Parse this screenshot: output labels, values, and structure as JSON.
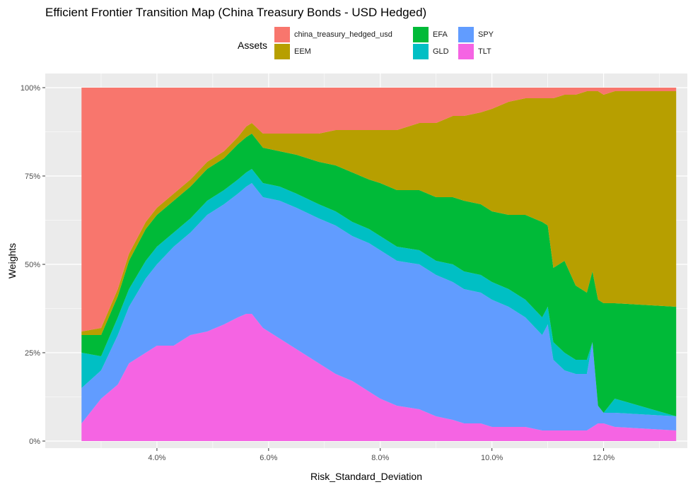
{
  "chart_data": {
    "type": "area",
    "stacked": true,
    "title": "Efficient Frontier Transition Map (China Treasury Bonds - USD Hedged)",
    "xlabel": "Risk_Standard_Deviation",
    "ylabel": "Weights",
    "xlim": [
      2.0,
      13.5
    ],
    "ylim": [
      -0.02,
      1.04
    ],
    "x_ticks": [
      4,
      6,
      8,
      10,
      12
    ],
    "x_tick_labels": [
      "4.0%",
      "6.0%",
      "8.0%",
      "10.0%",
      "12.0%"
    ],
    "y_ticks": [
      0,
      0.25,
      0.5,
      0.75,
      1.0
    ],
    "y_tick_labels": [
      "0%",
      "25%",
      "50%",
      "75%",
      "100%"
    ],
    "grid": true,
    "legend": {
      "title": "Assets",
      "placement": "top",
      "items": [
        {
          "name": "china_treasury_hedged_usd",
          "color": "#F8766D"
        },
        {
          "name": "EEM",
          "color": "#B79F00"
        },
        {
          "name": "EFA",
          "color": "#00BA38"
        },
        {
          "name": "GLD",
          "color": "#00BFC4"
        },
        {
          "name": "SPY",
          "color": "#619CFF"
        },
        {
          "name": "TLT",
          "color": "#F564E3"
        }
      ]
    },
    "x": [
      2.65,
      3.0,
      3.3,
      3.5,
      3.8,
      4.0,
      4.3,
      4.6,
      4.9,
      5.2,
      5.45,
      5.6,
      5.7,
      5.9,
      6.2,
      6.5,
      6.9,
      7.2,
      7.5,
      7.8,
      8.0,
      8.3,
      8.7,
      9.0,
      9.3,
      9.5,
      9.8,
      10.0,
      10.3,
      10.6,
      10.9,
      11.0,
      11.1,
      11.3,
      11.5,
      11.7,
      11.8,
      11.9,
      12.0,
      12.2,
      13.3
    ],
    "series": [
      {
        "name": "TLT",
        "values": [
          0.05,
          0.12,
          0.16,
          0.22,
          0.25,
          0.27,
          0.27,
          0.3,
          0.31,
          0.33,
          0.35,
          0.36,
          0.36,
          0.32,
          0.29,
          0.26,
          0.22,
          0.19,
          0.17,
          0.14,
          0.12,
          0.1,
          0.09,
          0.07,
          0.06,
          0.05,
          0.05,
          0.04,
          0.04,
          0.04,
          0.03,
          0.03,
          0.03,
          0.03,
          0.03,
          0.03,
          0.04,
          0.05,
          0.05,
          0.04,
          0.03
        ]
      },
      {
        "name": "SPY",
        "values": [
          0.1,
          0.08,
          0.14,
          0.16,
          0.21,
          0.23,
          0.28,
          0.29,
          0.33,
          0.34,
          0.35,
          0.36,
          0.37,
          0.37,
          0.39,
          0.4,
          0.41,
          0.42,
          0.41,
          0.42,
          0.42,
          0.41,
          0.41,
          0.4,
          0.39,
          0.38,
          0.37,
          0.36,
          0.34,
          0.31,
          0.27,
          0.3,
          0.2,
          0.17,
          0.16,
          0.16,
          0.24,
          0.05,
          0.03,
          0.04,
          0.04
        ]
      },
      {
        "name": "GLD",
        "values": [
          0.1,
          0.04,
          0.05,
          0.05,
          0.05,
          0.05,
          0.04,
          0.04,
          0.04,
          0.04,
          0.04,
          0.04,
          0.04,
          0.04,
          0.04,
          0.04,
          0.04,
          0.04,
          0.04,
          0.04,
          0.04,
          0.04,
          0.04,
          0.04,
          0.05,
          0.05,
          0.05,
          0.05,
          0.05,
          0.05,
          0.05,
          0.05,
          0.05,
          0.05,
          0.04,
          0.04,
          0.0,
          0.0,
          0.0,
          0.04,
          0.0
        ]
      },
      {
        "name": "EFA",
        "values": [
          0.05,
          0.06,
          0.06,
          0.08,
          0.09,
          0.09,
          0.09,
          0.09,
          0.09,
          0.09,
          0.1,
          0.1,
          0.1,
          0.1,
          0.1,
          0.11,
          0.12,
          0.13,
          0.14,
          0.14,
          0.15,
          0.16,
          0.17,
          0.18,
          0.19,
          0.2,
          0.2,
          0.2,
          0.21,
          0.24,
          0.27,
          0.23,
          0.21,
          0.26,
          0.21,
          0.19,
          0.2,
          0.3,
          0.31,
          0.27,
          0.31
        ]
      },
      {
        "name": "EEM",
        "values": [
          0.01,
          0.02,
          0.02,
          0.02,
          0.02,
          0.02,
          0.02,
          0.02,
          0.02,
          0.02,
          0.02,
          0.03,
          0.03,
          0.04,
          0.05,
          0.06,
          0.08,
          0.1,
          0.12,
          0.14,
          0.15,
          0.17,
          0.19,
          0.21,
          0.23,
          0.24,
          0.26,
          0.29,
          0.32,
          0.33,
          0.35,
          0.36,
          0.48,
          0.47,
          0.54,
          0.57,
          0.51,
          0.59,
          0.59,
          0.6,
          0.61
        ]
      },
      {
        "name": "china_treasury_hedged_usd",
        "values": [
          0.69,
          0.68,
          0.57,
          0.47,
          0.38,
          0.34,
          0.3,
          0.26,
          0.21,
          0.18,
          0.14,
          0.11,
          0.1,
          0.13,
          0.13,
          0.13,
          0.13,
          0.12,
          0.12,
          0.12,
          0.12,
          0.12,
          0.1,
          0.1,
          0.08,
          0.08,
          0.07,
          0.06,
          0.04,
          0.03,
          0.03,
          0.03,
          0.03,
          0.02,
          0.02,
          0.01,
          0.01,
          0.01,
          0.02,
          0.01,
          0.01
        ]
      }
    ]
  }
}
